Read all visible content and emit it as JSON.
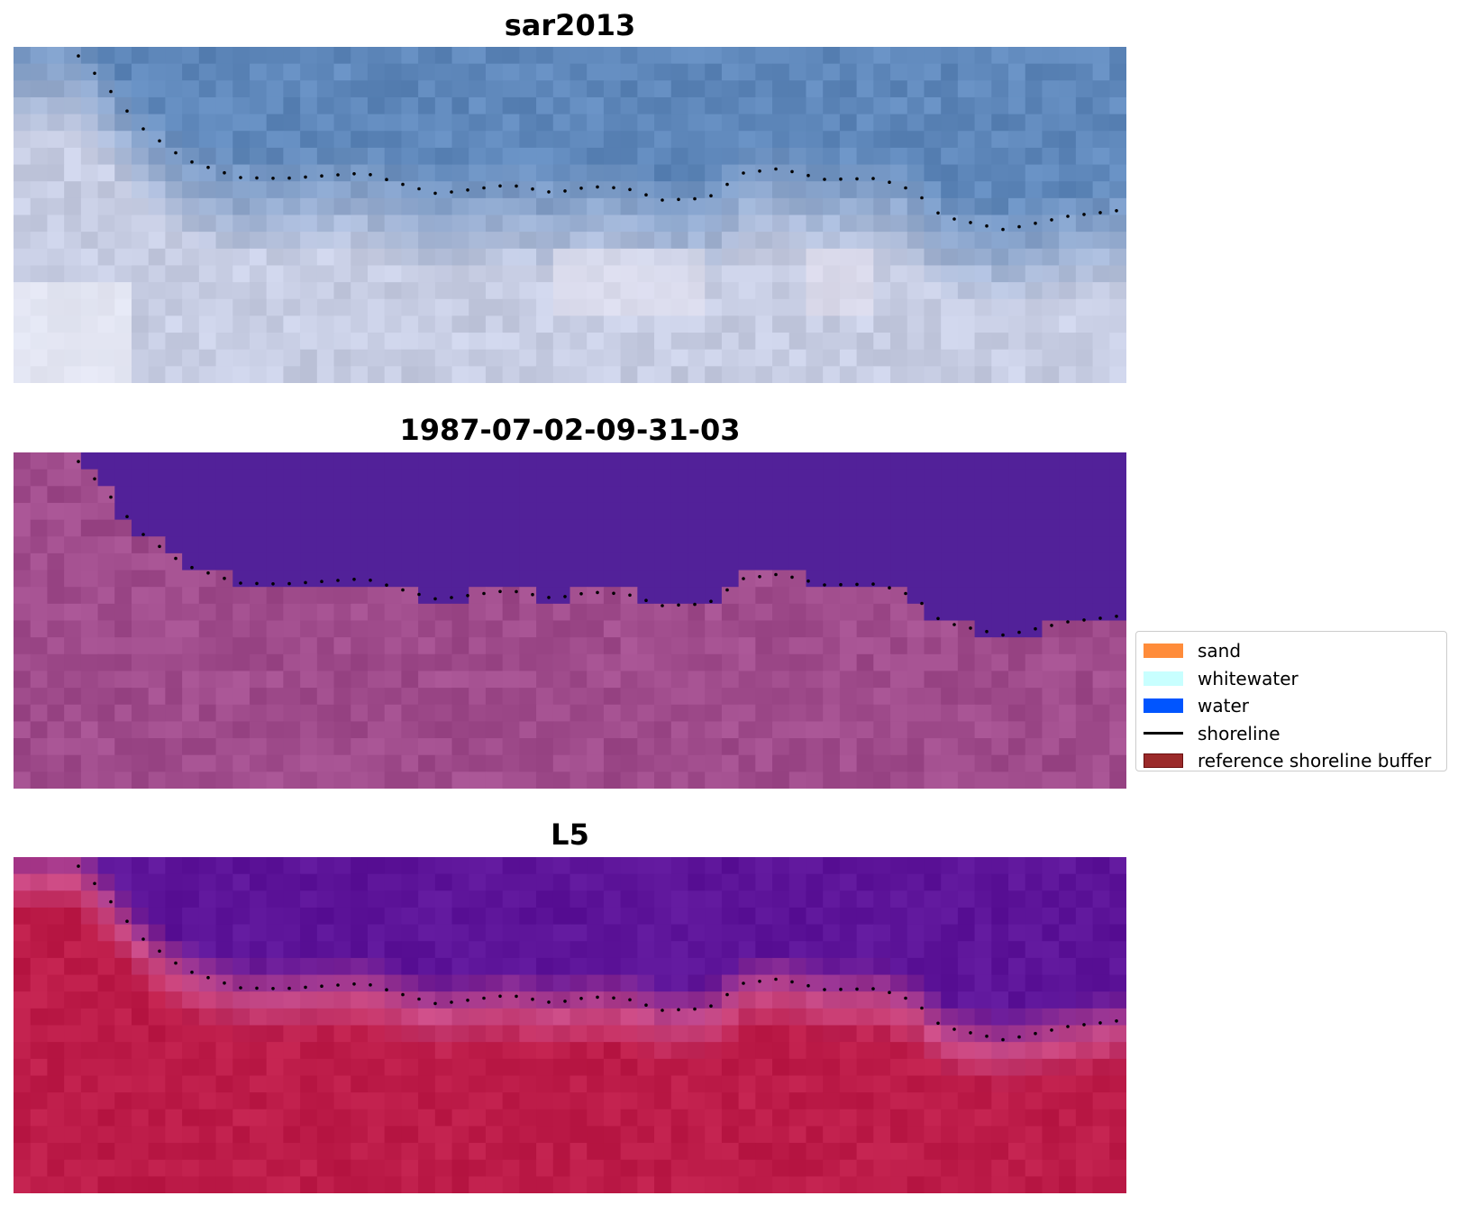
{
  "panels": [
    {
      "title": "sar2013",
      "image": "sar-backscatter-image"
    },
    {
      "title": "1987-07-02-09-31-03",
      "image": "classified-image"
    },
    {
      "title": "L5",
      "image": "landsat5-image"
    }
  ],
  "legend": {
    "items": [
      {
        "label": "sand",
        "color": "#ff8c3a",
        "kind": "patch"
      },
      {
        "label": "whitewater",
        "color": "#c8ffff",
        "kind": "patch"
      },
      {
        "label": "water",
        "color": "#0055ff",
        "kind": "patch"
      },
      {
        "label": "shoreline",
        "color": "#000000",
        "kind": "line"
      },
      {
        "label": "reference shoreline buffer",
        "color": "#9b2a2a",
        "kind": "patch",
        "edge": "#6b0f0f"
      }
    ]
  },
  "colors": {
    "sar_water": "#5f88bb",
    "sar_land": "#c7cde3",
    "class_water": "#522199",
    "class_land": "#a04c8c",
    "l5_water": "#5d1499",
    "l5_transition": "#c94a86",
    "l5_land": "#bd1c49"
  }
}
